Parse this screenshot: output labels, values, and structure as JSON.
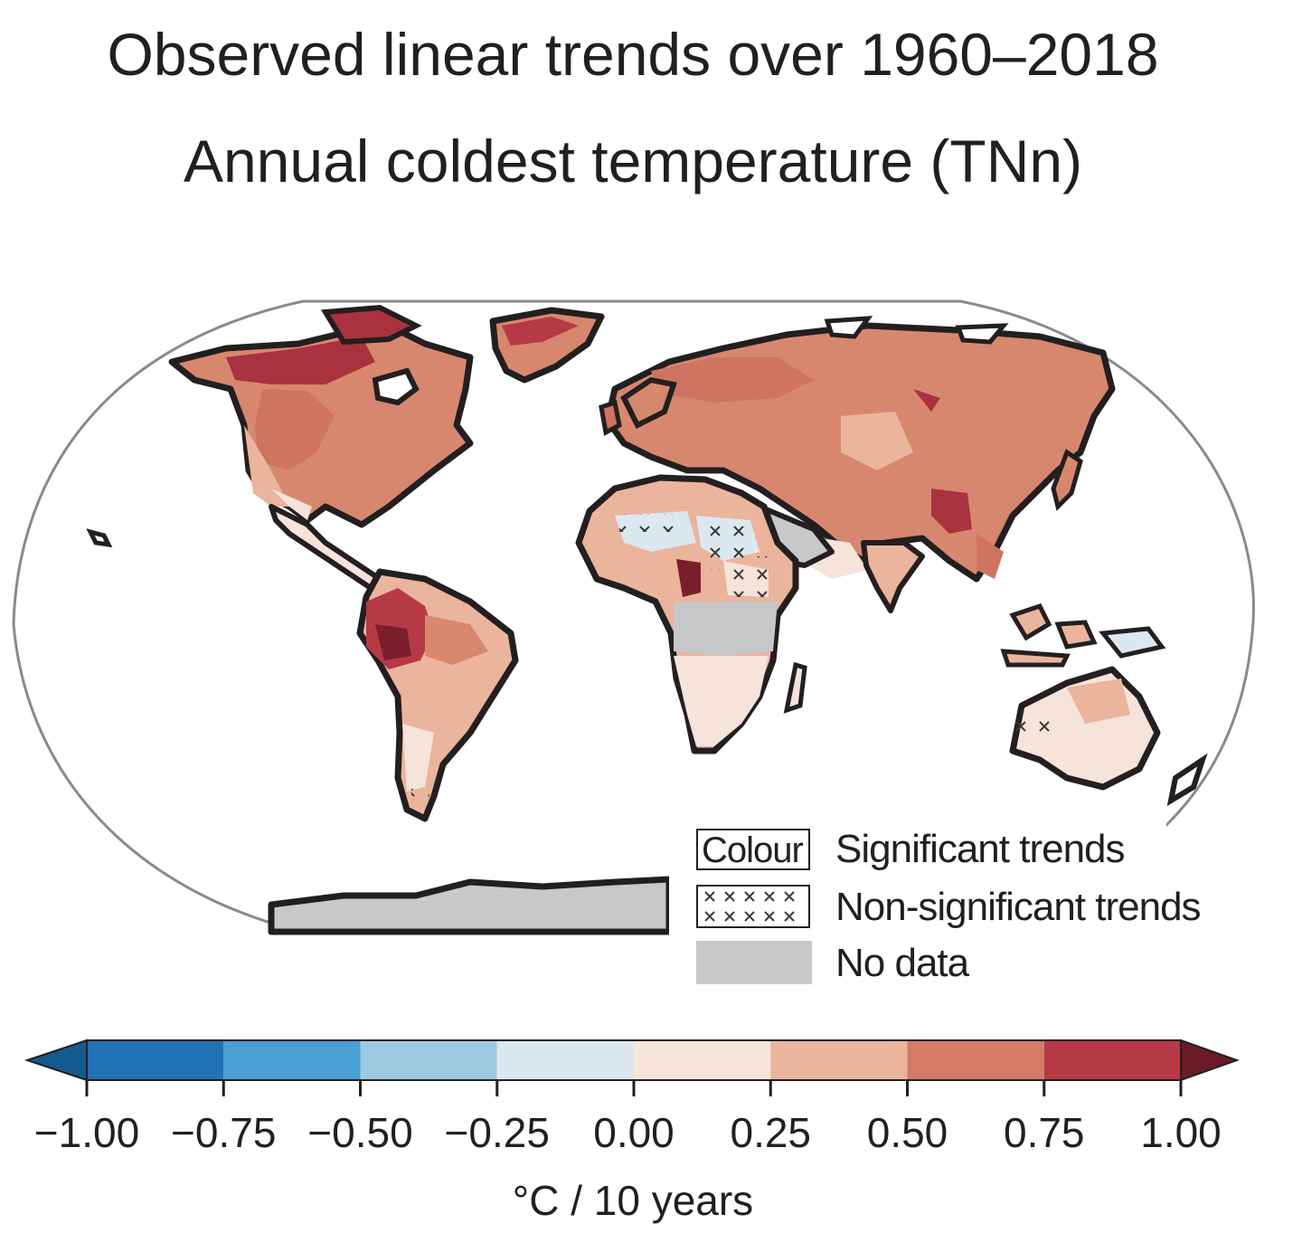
{
  "title_line1": "Observed linear trends over 1960–2018",
  "title_line2": "Annual coldest temperature (TNn)",
  "legend": {
    "colour_swatch_text": "Colour",
    "significant_label": "Significant trends",
    "nonsignificant_label": "Non-significant trends",
    "nodata_label": "No data",
    "nodata_color": "#c7c8ca"
  },
  "colorbar": {
    "unit_label": "°C / 10 years",
    "ticks": [
      "−1.00",
      "−0.75",
      "−0.50",
      "−0.25",
      "0.00",
      "0.25",
      "0.50",
      "0.75",
      "1.00"
    ],
    "bins": [
      {
        "range": [
          -1.0,
          -0.75
        ],
        "color": "#2171b5"
      },
      {
        "range": [
          -0.75,
          -0.5
        ],
        "color": "#4a9fd4"
      },
      {
        "range": [
          -0.5,
          -0.25
        ],
        "color": "#9ecae1"
      },
      {
        "range": [
          -0.25,
          0.0
        ],
        "color": "#dbe8f0"
      },
      {
        "range": [
          0.0,
          0.25
        ],
        "color": "#f7e5dc"
      },
      {
        "range": [
          0.25,
          0.5
        ],
        "color": "#ebb49c"
      },
      {
        "range": [
          0.5,
          0.75
        ],
        "color": "#d47a66"
      },
      {
        "range": [
          0.75,
          1.0
        ],
        "color": "#b63946"
      }
    ],
    "under_color": "#135a91",
    "over_color": "#6b1a27"
  },
  "map": {
    "coastline_color": "#231f20",
    "frame_color": "#8a8a8a"
  }
}
